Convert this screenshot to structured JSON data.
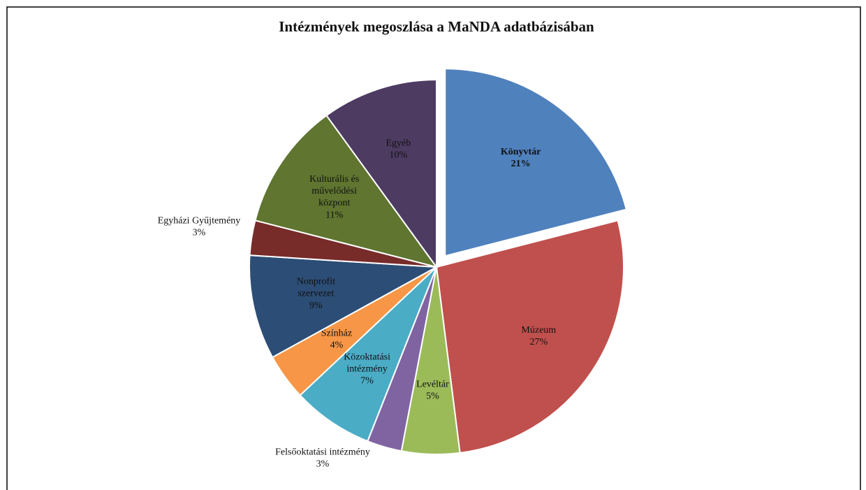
{
  "chart_data": {
    "type": "pie",
    "title": "Intézmények megoszlása a MaNDA adatbázisában",
    "categories": [
      "Könyvtár",
      "Múzeum",
      "Levéltár",
      "Felsőoktatási intézmény",
      "Közoktatási intézmény",
      "Színház",
      "Nonprofit szervezet",
      "Egyházi Gyűjtemény",
      "Kulturális és művelődési központ",
      "Egyéb"
    ],
    "values": [
      21,
      27,
      5,
      3,
      7,
      4,
      9,
      3,
      11,
      10
    ],
    "value_labels": [
      "21%",
      "27%",
      "5%",
      "3%",
      "7%",
      "4%",
      "9%",
      "3%",
      "11%",
      "10%"
    ],
    "colors": [
      "#4f81bd",
      "#c0504d",
      "#9bbb59",
      "#8064a2",
      "#4bacc6",
      "#f79646",
      "#2c4d75",
      "#772c2a",
      "#5f7530",
      "#4d3b62"
    ],
    "exploded": [
      "Könyvtár"
    ]
  }
}
